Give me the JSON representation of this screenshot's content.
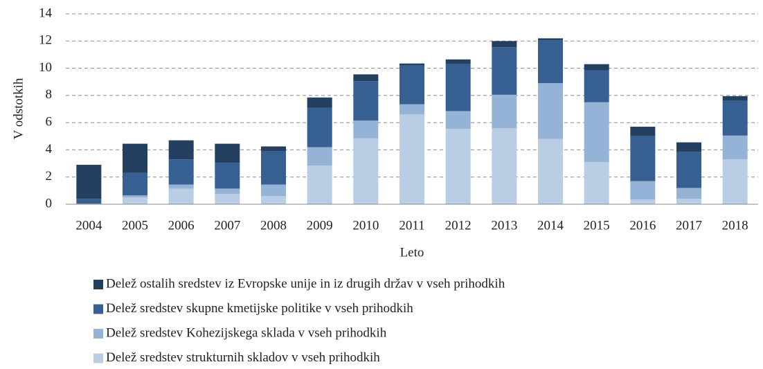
{
  "chart_data": {
    "type": "stacked_bar",
    "x_label": "Leto",
    "y_label": "V odstotkih",
    "categories": [
      "2004",
      "2005",
      "2006",
      "2007",
      "2008",
      "2009",
      "2010",
      "2011",
      "2012",
      "2013",
      "2014",
      "2015",
      "2016",
      "2017",
      "2018"
    ],
    "series": [
      {
        "name": "Delež sredstev strukturnih skladov v vseh prihodkih",
        "color": "#b9cde5",
        "values": [
          0,
          0.5,
          1.15,
          0.75,
          0.6,
          2.85,
          4.85,
          6.6,
          5.55,
          5.6,
          4.8,
          3.1,
          0.35,
          0.4,
          3.3
        ]
      },
      {
        "name": "Delež sredstev Kohezijskega sklada v vseh prihodkih",
        "color": "#95b3d7",
        "values": [
          0.05,
          0.15,
          0.3,
          0.4,
          0.85,
          1.35,
          1.3,
          0.75,
          1.3,
          2.45,
          4.1,
          4.4,
          1.35,
          0.8,
          1.75
        ]
      },
      {
        "name": "Delež sredstev skupne kmetijske politike v vseh prihodkih",
        "color": "#376092",
        "values": [
          0.35,
          1.65,
          1.85,
          1.9,
          2.45,
          2.9,
          2.9,
          2.85,
          3.45,
          3.5,
          3.15,
          2.35,
          3.3,
          2.65,
          2.55
        ]
      },
      {
        "name": "Delež ostalih sredstev iz Evropske unije in iz drugih držav v vseh prihodkih",
        "color": "#243f60",
        "values": [
          2.5,
          2.15,
          1.4,
          1.4,
          0.35,
          0.75,
          0.5,
          0.15,
          0.35,
          0.45,
          0.15,
          0.45,
          0.7,
          0.7,
          0.35
        ]
      }
    ],
    "ylim": [
      0,
      14
    ],
    "yticks": [
      0,
      2,
      4,
      6,
      8,
      10,
      12,
      14
    ],
    "grid": true
  }
}
